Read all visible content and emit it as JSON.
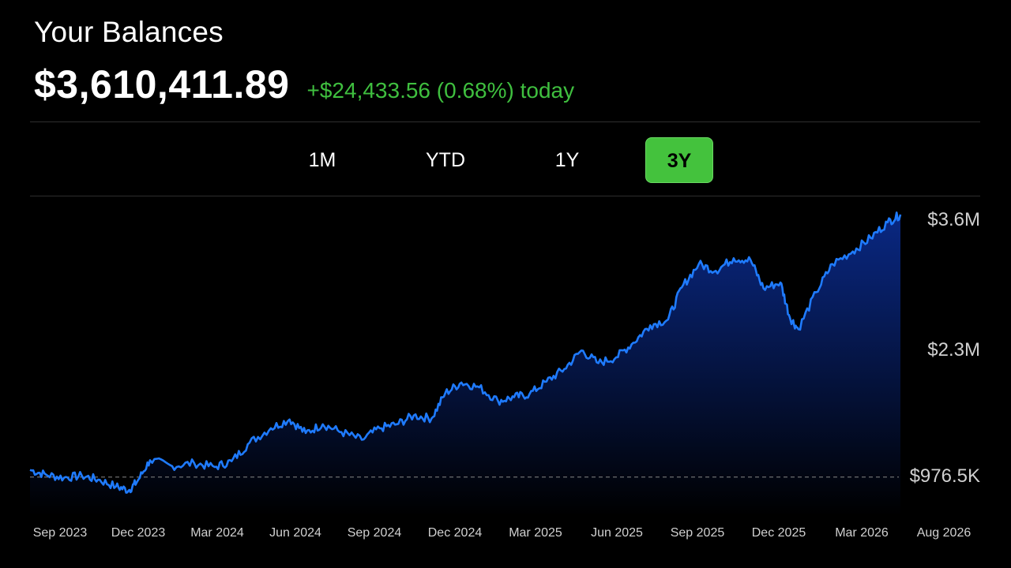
{
  "header": {
    "title": "Your Balances",
    "balance": "$3,610,411.89",
    "change": "+$24,433.56 (0.68%) today",
    "change_color": "#3fbf3f"
  },
  "tabs": [
    {
      "label": "1M",
      "active": false
    },
    {
      "label": "YTD",
      "active": false
    },
    {
      "label": "1Y",
      "active": false
    },
    {
      "label": "3Y",
      "active": true
    }
  ],
  "colors": {
    "line": "#1f7bff",
    "active_tab": "#44c23d",
    "axis_text": "#d0d0d0",
    "baseline": "#888888"
  },
  "chart_data": {
    "type": "area",
    "title": "",
    "xlabel": "",
    "ylabel": "",
    "x_tick_labels": [
      "Sep 2023",
      "Dec 2023",
      "Mar 2024",
      "Jun 2024",
      "Sep 2024",
      "Dec 2024",
      "Mar 2025",
      "Jun 2025",
      "Sep 2025",
      "Dec 2025",
      "Mar 2026",
      "Aug 2026"
    ],
    "y_tick_labels": [
      "$3.6M",
      "$2.3M",
      "$976.5K"
    ],
    "y_ticks": [
      3600000,
      2300000,
      976500
    ],
    "reference_line": {
      "value": 976500,
      "style": "dashed"
    },
    "series": [
      {
        "x": [
          "2023-08-01",
          "2023-08-20",
          "2023-09-10",
          "2023-10-01",
          "2023-10-20",
          "2023-11-10",
          "2023-11-25",
          "2023-12-05",
          "2023-12-20",
          "2024-01-15",
          "2024-02-10",
          "2024-03-05",
          "2024-03-25",
          "2024-04-15",
          "2024-05-10",
          "2024-06-01",
          "2024-06-20",
          "2024-07-10",
          "2024-08-01",
          "2024-08-25",
          "2024-09-15",
          "2024-10-05",
          "2024-10-25",
          "2024-11-15",
          "2024-12-01",
          "2024-12-20",
          "2025-01-10",
          "2025-02-01",
          "2025-02-20",
          "2025-03-10",
          "2025-03-30",
          "2025-04-20",
          "2025-05-10",
          "2025-05-30",
          "2025-06-20",
          "2025-07-10",
          "2025-07-30",
          "2025-08-20",
          "2025-09-05",
          "2025-09-25",
          "2025-10-15",
          "2025-11-05",
          "2025-11-25",
          "2025-12-10",
          "2025-12-30",
          "2026-01-10",
          "2026-01-20",
          "2026-02-10",
          "2026-03-01",
          "2026-03-25",
          "2026-04-15",
          "2026-05-05",
          "2026-05-20"
        ],
        "values": [
          1050000,
          1000000,
          970000,
          990000,
          950000,
          880000,
          840000,
          930000,
          1150000,
          1090000,
          1120000,
          1080000,
          1140000,
          1330000,
          1480000,
          1570000,
          1430000,
          1520000,
          1440000,
          1360000,
          1480000,
          1520000,
          1610000,
          1580000,
          1840000,
          1950000,
          1900000,
          1760000,
          1800000,
          1830000,
          1960000,
          2090000,
          2280000,
          2150000,
          2210000,
          2360000,
          2540000,
          2600000,
          2930000,
          3170000,
          3100000,
          3230000,
          3210000,
          2920000,
          2980000,
          2620000,
          2500000,
          2880000,
          3170000,
          3300000,
          3440000,
          3600000,
          3680000
        ]
      }
    ]
  }
}
